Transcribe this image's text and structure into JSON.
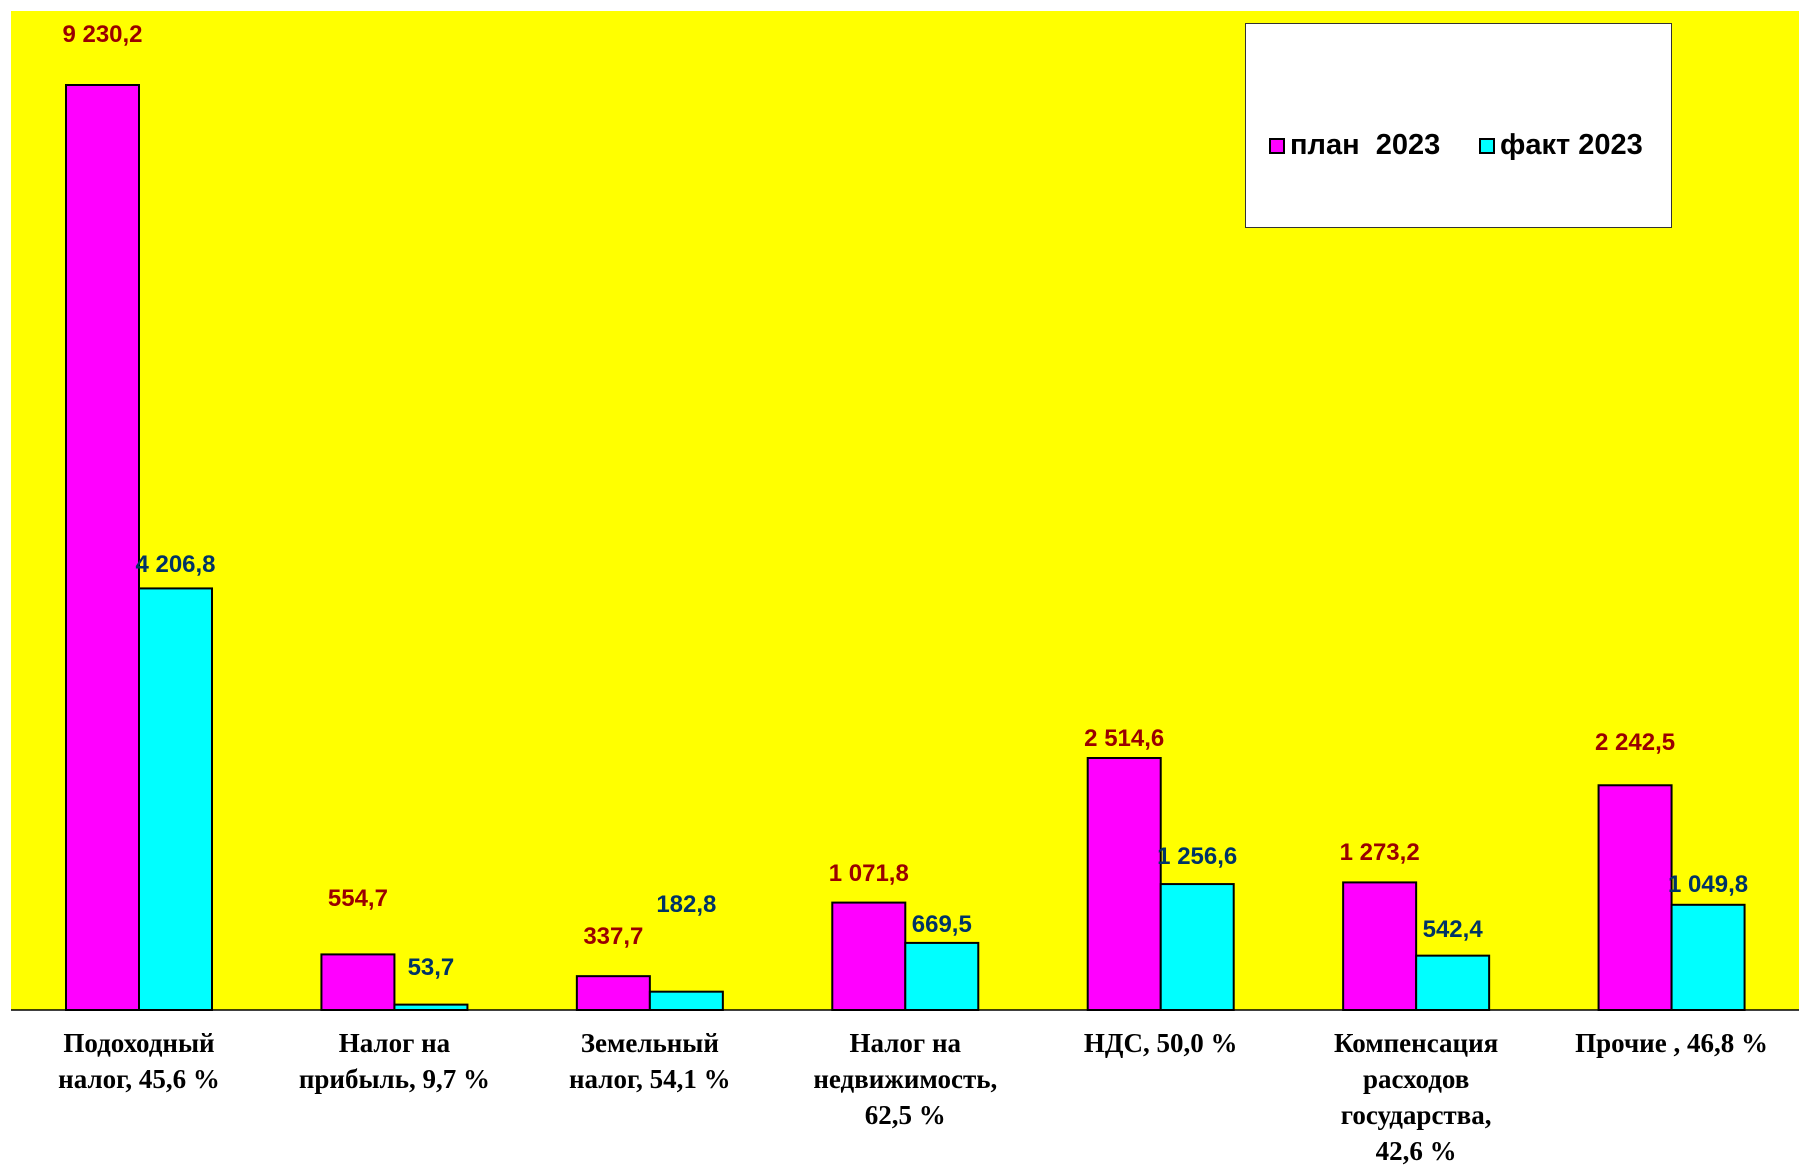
{
  "chart_data": {
    "type": "bar",
    "categories": [
      [
        "Подоходный",
        "налог, 45,6 %"
      ],
      [
        "Налог на",
        "прибыль, 9,7 %"
      ],
      [
        "Земельный",
        "налог, 54,1 %"
      ],
      [
        "Налог на",
        "недвижимость,",
        "62,5 %"
      ],
      [
        "НДС, 50,0 %"
      ],
      [
        "Компенсация",
        "расходов",
        "государства,",
        "42,6 %"
      ],
      [
        "Прочие , 46,8 %"
      ]
    ],
    "series": [
      {
        "name": "план  2023",
        "values": [
          9230.2,
          554.7,
          337.7,
          1071.8,
          2514.6,
          1273.2,
          2242.5
        ],
        "labels": [
          "9 230,2",
          "554,7",
          "337,7",
          "1 071,8",
          "2 514,6",
          "1 273,2",
          "2 242,5"
        ],
        "color": "#FF00FF",
        "label_color": "#990000"
      },
      {
        "name": "факт 2023",
        "values": [
          4206.8,
          53.7,
          182.8,
          669.5,
          1256.6,
          542.4,
          1049.8
        ],
        "labels": [
          "4 206,8",
          "53,7",
          "182,8",
          "669,5",
          "1 256,6",
          "542,4",
          "1 049,8"
        ],
        "color": "#00FFFF",
        "label_color": "#003366"
      }
    ],
    "ylim": [
      0,
      9230.2
    ],
    "grid": false,
    "legend_position": "top-right",
    "plot_background": "#FFFF00"
  }
}
